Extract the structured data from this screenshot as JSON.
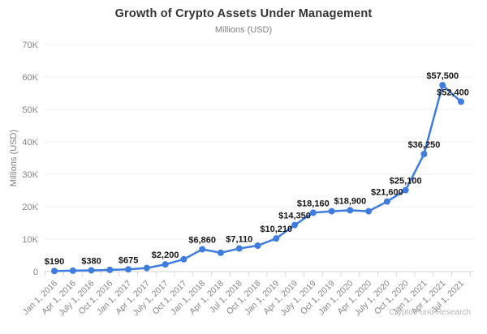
{
  "colors": {
    "line": "#3e7cdf",
    "point": "#3e7cdf",
    "gridline": "#ececec",
    "baseline": "#d0d0d0",
    "tick": "#d9d9d9",
    "axis_text": "#858585",
    "data_label": "#161616",
    "title": "#333333",
    "subtitle": "#808080",
    "watermark": "#b5b5b5"
  },
  "chart_data": {
    "type": "line",
    "title": "Growth of Crypto Assets Under Management",
    "subtitle": "Millions (USD)",
    "ylabel": "Millions (USD)",
    "xlabel": "",
    "watermark": "Crypto Fund Research",
    "ylim": [
      0,
      70000
    ],
    "ytick_values": [
      0,
      10000,
      20000,
      30000,
      40000,
      50000,
      60000,
      70000
    ],
    "ytick_labels": [
      "0",
      "10K",
      "20K",
      "30K",
      "40K",
      "50K",
      "60K",
      "70K"
    ],
    "grid": true,
    "legend": "none",
    "categories": [
      "Jan 1, 2016",
      "Apr 1, 2016",
      "July 1, 2016",
      "Oct 1, 2016",
      "Jan 1, 2017",
      "Apr 1, 2017",
      "July 1, 2017",
      "Oct 1, 2017",
      "Jan 1, 2018",
      "Apr 1, 2018",
      "Jul 1, 2018",
      "Oct 1, 2018",
      "Jan 1, 2019",
      "Apr 1, 2019",
      "July 1, 2019",
      "Oct 1, 2019",
      "Jan 1, 2020",
      "Apr 1, 2020",
      "July 1, 2020",
      "Oct 1, 2020",
      "Jan 1, 2021",
      "Apr 1, 2021",
      "Jul 1, 2021"
    ],
    "values": [
      190,
      280,
      380,
      520,
      675,
      1100,
      2200,
      3800,
      6860,
      5800,
      7110,
      8000,
      10210,
      14350,
      18160,
      18600,
      18900,
      18600,
      21600,
      25100,
      36250,
      57500,
      52400
    ],
    "point_labels": [
      "$190",
      "",
      "$380",
      "",
      "$675",
      "",
      "$2,200",
      "",
      "$6,860",
      "",
      "$7,110",
      "",
      "$10,210",
      "$14,350",
      "$18,160",
      "",
      "$18,900",
      "",
      "$21,600",
      "$25,100",
      "$36,250",
      "$57,500",
      "$52,400"
    ]
  }
}
